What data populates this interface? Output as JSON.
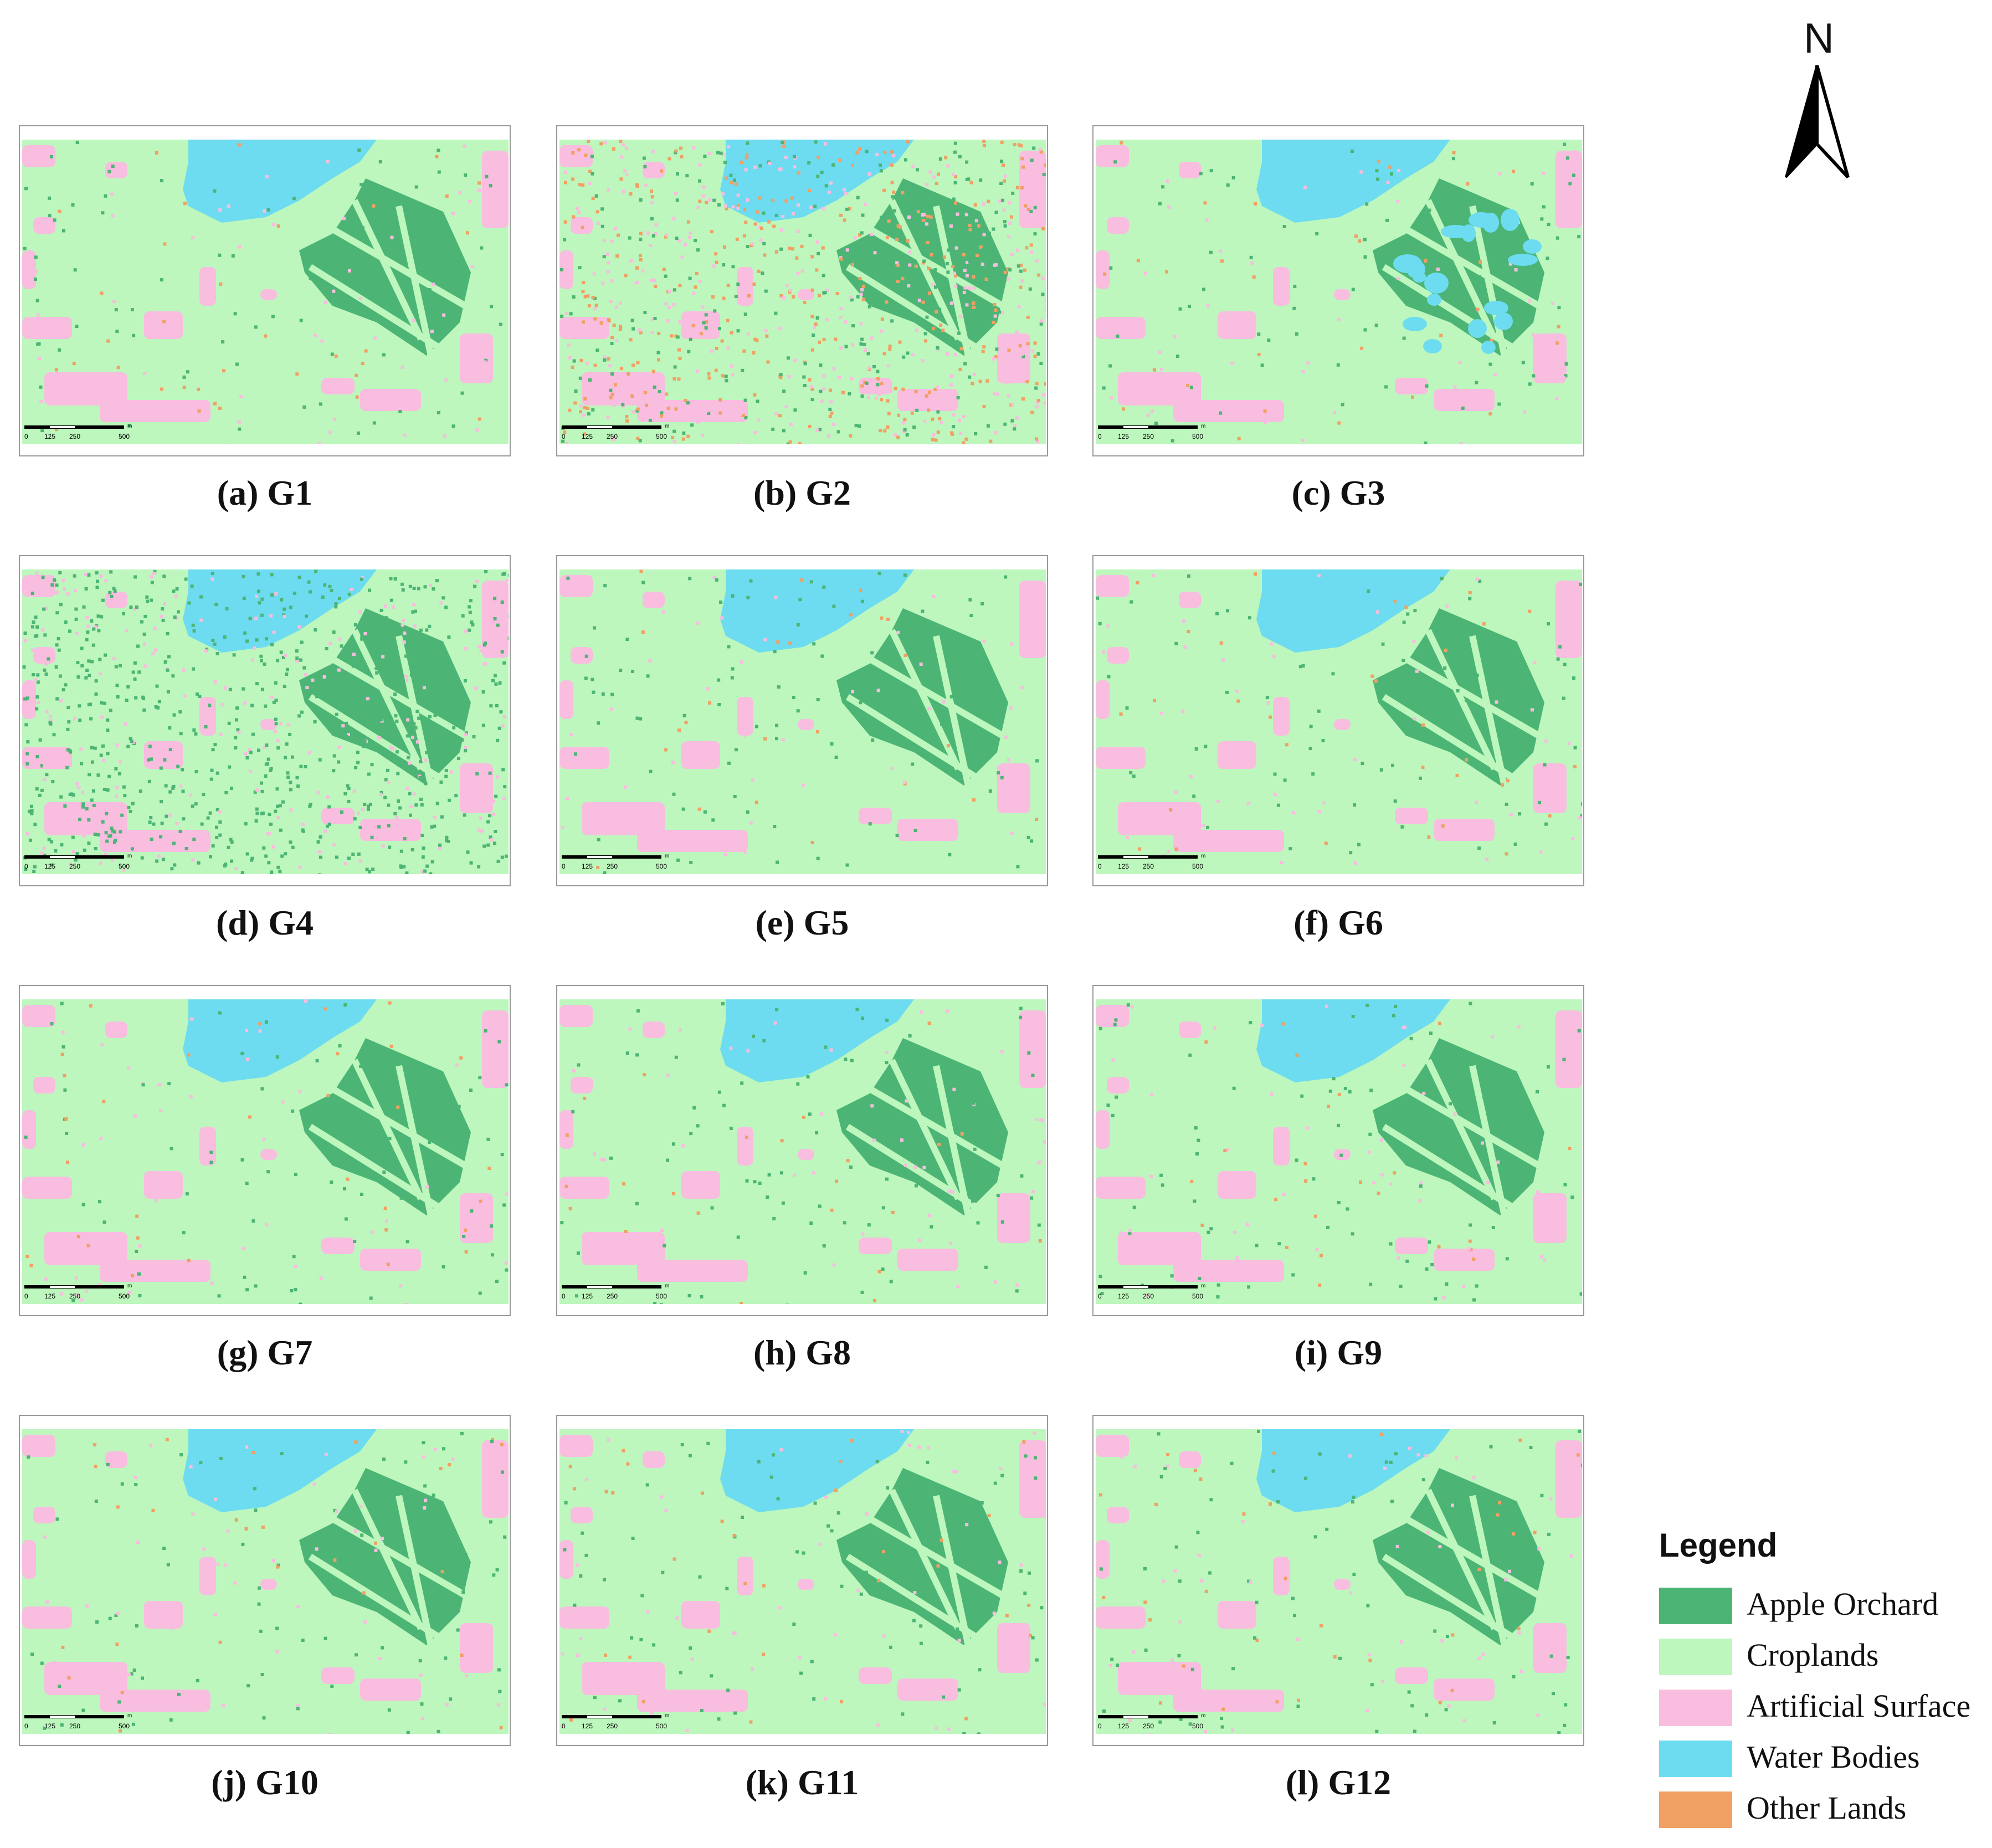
{
  "legend": {
    "title": "Legend",
    "items": [
      {
        "label": "Apple Orchard",
        "color": "#4cb575"
      },
      {
        "label": "Croplands",
        "color": "#bdf7bd"
      },
      {
        "label": "Artificial Surface",
        "color": "#f9bde0"
      },
      {
        "label": "Water Bodies",
        "color": "#6ddcf0"
      },
      {
        "label": "Other Lands",
        "color": "#f1a064"
      }
    ]
  },
  "north_arrow": {
    "label": "N"
  },
  "scale_bar": {
    "ticks": [
      "0",
      "125",
      "250",
      "500"
    ],
    "unit": "m"
  },
  "panels": [
    {
      "caption": "(a) G1"
    },
    {
      "caption": "(b) G2"
    },
    {
      "caption": "(c) G3"
    },
    {
      "caption": "(d) G4"
    },
    {
      "caption": "(e) G5"
    },
    {
      "caption": "(f) G6"
    },
    {
      "caption": "(g) G7"
    },
    {
      "caption": "(h) G8"
    },
    {
      "caption": "(i) G9"
    },
    {
      "caption": "(j) G10"
    },
    {
      "caption": "(k) G11"
    },
    {
      "caption": "(l) G12"
    }
  ]
}
